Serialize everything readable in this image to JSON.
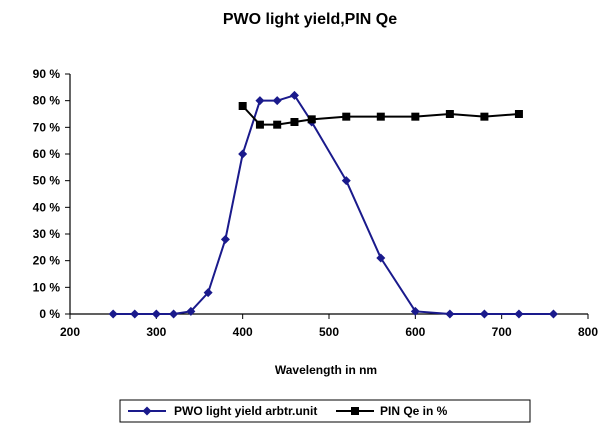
{
  "chart_data": {
    "type": "line",
    "title": "PWO light yield,PIN Qe",
    "xlabel": "Wavelength in nm",
    "ylabel": "",
    "xlim": [
      200,
      800
    ],
    "ylim": [
      0,
      90
    ],
    "x_ticks": [
      "200",
      "300",
      "400",
      "500",
      "600",
      "700",
      "800"
    ],
    "y_ticks": [
      "0 %",
      "10 %",
      "20 %",
      "30 %",
      "40 %",
      "50 %",
      "60 %",
      "70 %",
      "80 %",
      "90 %"
    ],
    "grid": false,
    "legend_position": "bottom",
    "series": [
      {
        "name": "PWO light yield arbtr.unit",
        "marker": "diamond",
        "color": "#1a1a8c",
        "points": [
          [
            250,
            0
          ],
          [
            275,
            0
          ],
          [
            300,
            0
          ],
          [
            320,
            0
          ],
          [
            340,
            1
          ],
          [
            360,
            8
          ],
          [
            380,
            28
          ],
          [
            400,
            60
          ],
          [
            420,
            80
          ],
          [
            440,
            80
          ],
          [
            460,
            82
          ],
          [
            480,
            72
          ],
          [
            520,
            50
          ],
          [
            560,
            21
          ],
          [
            600,
            1
          ],
          [
            640,
            0
          ],
          [
            680,
            0
          ],
          [
            720,
            0
          ],
          [
            760,
            0
          ]
        ]
      },
      {
        "name": "PIN Qe in %",
        "marker": "square",
        "color": "#000000",
        "points": [
          [
            400,
            78
          ],
          [
            420,
            71
          ],
          [
            440,
            71
          ],
          [
            460,
            72
          ],
          [
            480,
            73
          ],
          [
            520,
            74
          ],
          [
            560,
            74
          ],
          [
            600,
            74
          ],
          [
            640,
            75
          ],
          [
            680,
            74
          ],
          [
            720,
            75
          ]
        ]
      }
    ]
  }
}
